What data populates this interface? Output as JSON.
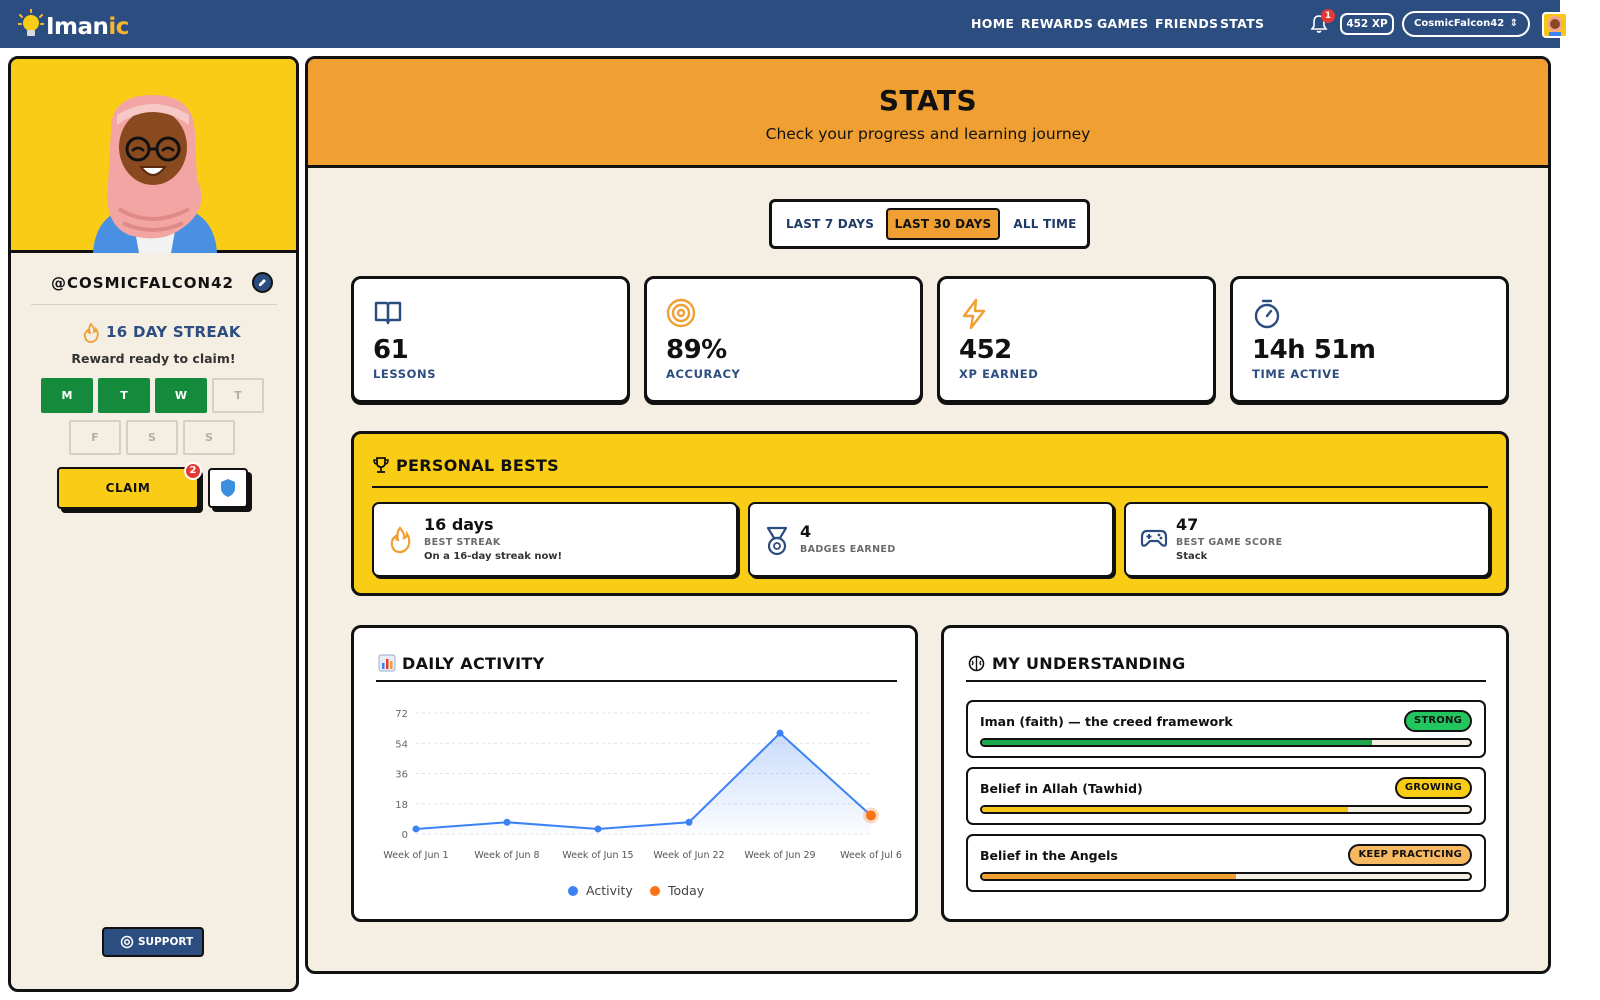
{
  "brand": {
    "name_a": "Iman",
    "name_b": "ic"
  },
  "nav": {
    "links": [
      "HOME",
      "REWARDS",
      "GAMES",
      "FRIENDS",
      "STATS"
    ],
    "notification_count": "1",
    "xp": "452 XP",
    "username": "CosmicFalcon42"
  },
  "sidebar": {
    "handle": "@COSMICFALCON42",
    "streak": "16 DAY STREAK",
    "streak_sub": "Reward ready to claim!",
    "days": [
      {
        "label": "M",
        "done": true
      },
      {
        "label": "T",
        "done": true
      },
      {
        "label": "W",
        "done": true
      },
      {
        "label": "T",
        "done": false
      },
      {
        "label": "F",
        "done": false
      },
      {
        "label": "S",
        "done": false
      },
      {
        "label": "S",
        "done": false
      }
    ],
    "claim_label": "CLAIM",
    "claim_badge": "2",
    "support_label": "SUPPORT"
  },
  "header": {
    "title": "STATS",
    "subtitle": "Check your progress and learning journey"
  },
  "range_tabs": {
    "items": [
      "LAST 7 DAYS",
      "LAST 30 DAYS",
      "ALL TIME"
    ],
    "selected": "LAST 30 DAYS"
  },
  "stats": [
    {
      "icon": "book-icon",
      "value": "61",
      "label": "LESSONS"
    },
    {
      "icon": "target-icon",
      "value": "89%",
      "label": "ACCURACY"
    },
    {
      "icon": "lightning-icon",
      "value": "452",
      "label": "XP EARNED"
    },
    {
      "icon": "stopwatch-icon",
      "value": "14h 51m",
      "label": "TIME ACTIVE"
    }
  ],
  "personal_bests": {
    "title": "PERSONAL BESTS",
    "items": [
      {
        "icon": "flame-icon",
        "value": "16 days",
        "label": "BEST STREAK",
        "sub": "On a 16-day streak now!"
      },
      {
        "icon": "medal-icon",
        "value": "4",
        "label": "BADGES EARNED",
        "sub": ""
      },
      {
        "icon": "gamepad-icon",
        "value": "47",
        "label": "BEST GAME SCORE",
        "sub": "Stack"
      }
    ]
  },
  "daily_activity": {
    "title": "DAILY ACTIVITY",
    "legend": [
      "Activity",
      "Today"
    ]
  },
  "chart_data": {
    "type": "line",
    "categories": [
      "Week of Jun 1",
      "Week of Jun 8",
      "Week of Jun 15",
      "Week of Jun 22",
      "Week of Jun 29",
      "Week of Jul 6"
    ],
    "series": [
      {
        "name": "Activity",
        "values": [
          3,
          7,
          3,
          7,
          60,
          11
        ]
      }
    ],
    "highlight": {
      "name": "Today",
      "index": 5,
      "value": 11
    },
    "yticks": [
      0,
      18,
      36,
      54,
      72
    ],
    "ylim": [
      0,
      72
    ],
    "grid": true,
    "legend_position": "bottom",
    "colors": {
      "line": "#3b82f6",
      "today": "#f97316"
    }
  },
  "understanding": {
    "title": "MY UNDERSTANDING",
    "items": [
      {
        "name": "Iman (faith) — the creed framework",
        "tag": "STRONG",
        "progress": 0.8,
        "color": "#1aa84a",
        "tag_color": "#22c55e"
      },
      {
        "name": "Belief in Allah (Tawhid)",
        "tag": "GROWING",
        "progress": 0.75,
        "color": "#f5c518",
        "tag_color": "#f9cd16"
      },
      {
        "name": "Belief in the Angels",
        "tag": "KEEP PRACTICING",
        "progress": 0.52,
        "color": "#f0a032",
        "tag_color": "#f6b860"
      }
    ]
  }
}
